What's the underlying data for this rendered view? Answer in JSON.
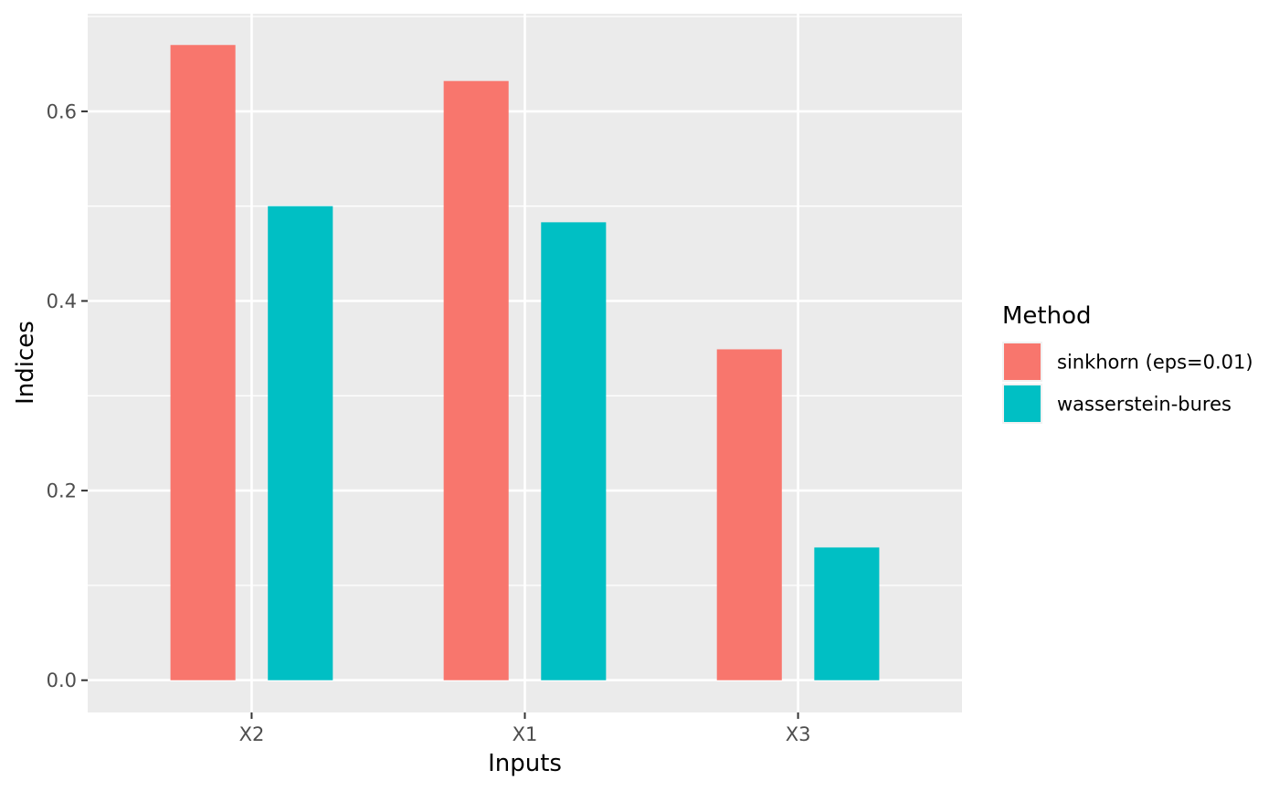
{
  "chart_data": {
    "type": "bar",
    "xlabel": "Inputs",
    "ylabel": "Indices",
    "categories": [
      "X2",
      "X1",
      "X3"
    ],
    "series": [
      {
        "name": "sinkhorn (eps=0.01)",
        "values": [
          0.67,
          0.632,
          0.349
        ],
        "color": "#F8766D"
      },
      {
        "name": "wasserstein-bures",
        "values": [
          0.5,
          0.483,
          0.14
        ],
        "color": "#00BFC4"
      }
    ],
    "ylim": [
      -0.034,
      0.703
    ],
    "yticks": [
      0.0,
      0.2,
      0.4,
      0.6
    ],
    "ytick_labels": [
      "0.0",
      "0.2",
      "0.4",
      "0.6"
    ],
    "legend": {
      "title": "Method",
      "position": "right"
    },
    "grid": true,
    "panel_color": "#EBEBEB"
  }
}
